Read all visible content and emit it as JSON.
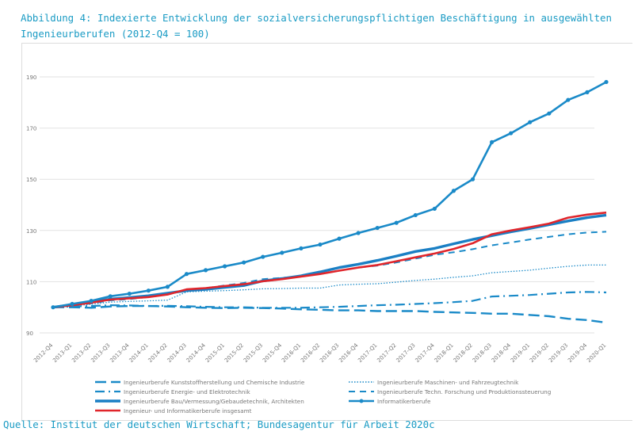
{
  "title_line1": "Abbildung 4: Indexierte Entwicklung der sozialversicherungspflichtigen Beschäftigung in ausgewählten",
  "title_line2": "Ingenieurberufen (2012-Q4 = 100)",
  "source": "Quelle: Institut der deutschen Wirtschaft; Bundesagentur für Arbeit 2020c",
  "chart_data": {
    "type": "line",
    "title": "Abbildung 4: Indexierte Entwicklung der sozialversicherungspflichtigen Beschäftigung in ausgewählten Ingenieurberufen (2012-Q4 = 100)",
    "xlabel": "",
    "ylabel": "",
    "ylim": [
      90,
      190
    ],
    "yticks": [
      90,
      110,
      130,
      150,
      170,
      190
    ],
    "grid": true,
    "legend_position": "bottom",
    "categories": [
      "2012-Q4",
      "2013-Q1",
      "2013-Q2",
      "2013-Q3",
      "2013-Q4",
      "2014-Q1",
      "2014-Q2",
      "2014-Q3",
      "2014-Q4",
      "2015-Q1",
      "2015-Q2",
      "2015-Q3",
      "2015-Q4",
      "2016-Q1",
      "2016-Q2",
      "2016-Q3",
      "2016-Q4",
      "2017-Q1",
      "2017-Q2",
      "2017-Q3",
      "2017-Q4",
      "2018-Q1",
      "2018-Q2",
      "2018-Q3",
      "2018-Q4",
      "2019-Q1",
      "2019-Q2",
      "2019-Q3",
      "2019-Q4",
      "2020-Q1"
    ],
    "series": [
      {
        "name": "Ingenieurberufe Kunststoffherstellung und Chemische Industrie",
        "color": "#1a8ac8",
        "style": "longdash",
        "values": [
          100,
          100,
          99.8,
          100.3,
          100.5,
          100.5,
          100.3,
          100,
          99.8,
          99.7,
          99.8,
          99.7,
          99.5,
          99.2,
          99,
          98.8,
          98.8,
          98.5,
          98.5,
          98.5,
          98.2,
          98,
          97.8,
          97.5,
          97.5,
          97,
          96.5,
          95.5,
          95,
          94
        ]
      },
      {
        "name": "Ingenieurberufe Maschinen- und Fahrzeugtechnik",
        "color": "#1a8ac8",
        "style": "dotted",
        "values": [
          100,
          100.5,
          101.2,
          102,
          102.3,
          102.5,
          102.8,
          106,
          106.3,
          106.5,
          106.8,
          107.2,
          107.3,
          107.5,
          107.5,
          108.7,
          109,
          109.2,
          109.8,
          110.5,
          111,
          111.7,
          112.3,
          113.5,
          114,
          114.5,
          115.3,
          116,
          116.5,
          116.5
        ]
      },
      {
        "name": "Ingenieurberufe Energie- und Elektrotechnik",
        "color": "#1a8ac8",
        "style": "dashdot",
        "values": [
          100,
          100.3,
          100.5,
          100.8,
          100.7,
          100.5,
          100.6,
          100.4,
          100.2,
          100,
          100,
          99.8,
          99.8,
          99.8,
          100,
          100.2,
          100.5,
          100.8,
          101,
          101.3,
          101.6,
          102,
          102.5,
          104.2,
          104.5,
          104.8,
          105.3,
          105.8,
          106,
          105.8
        ]
      },
      {
        "name": "Ingenieurberufe Techn. Forschung und Produktionssteuerung",
        "color": "#1a8ac8",
        "style": "dashed",
        "values": [
          100,
          100.8,
          101.5,
          102.7,
          103.2,
          104,
          105,
          106.8,
          107.5,
          108.5,
          109.5,
          111,
          111.5,
          112,
          113,
          114.3,
          115.5,
          116.3,
          117.5,
          119,
          120.5,
          121.5,
          122.7,
          124.2,
          125.3,
          126.5,
          127.5,
          128.5,
          129.2,
          129.5
        ]
      },
      {
        "name": "Ingenieurberufe Bau/Vermessung/Gebaudetechnik, Architekten",
        "color": "#1a7fc4",
        "style": "solid-thick",
        "values": [
          100,
          101,
          102,
          103.2,
          103.8,
          104.5,
          105.5,
          106.5,
          107,
          107.8,
          108.5,
          110.3,
          111.2,
          112.3,
          113.8,
          115.5,
          116.8,
          118.3,
          120,
          121.8,
          123,
          124.8,
          126.5,
          128,
          129.5,
          130.8,
          132.3,
          133.7,
          135,
          136
        ]
      },
      {
        "name": "Informatikerberufe",
        "color": "#1a8ac8",
        "style": "solid-marker",
        "values": [
          100,
          101.3,
          102.5,
          104.3,
          105.3,
          106.5,
          108,
          113,
          114.5,
          116,
          117.5,
          119.7,
          121.3,
          123,
          124.5,
          126.8,
          129,
          131,
          133,
          136,
          138.5,
          145.5,
          150,
          164.5,
          168,
          172.3,
          175.7,
          181,
          184,
          188
        ]
      },
      {
        "name": "Ingenieur- und Informatikerberufe insgesamt",
        "color": "#e0252b",
        "style": "solid",
        "values": [
          100,
          100.8,
          101.8,
          103,
          103.5,
          104,
          105,
          107,
          107.5,
          108.3,
          109,
          110.2,
          111,
          112,
          113,
          114.3,
          115.5,
          116.5,
          118,
          119.5,
          121,
          122.8,
          125,
          128.5,
          130,
          131.3,
          132.7,
          135,
          136.2,
          137
        ]
      }
    ]
  }
}
